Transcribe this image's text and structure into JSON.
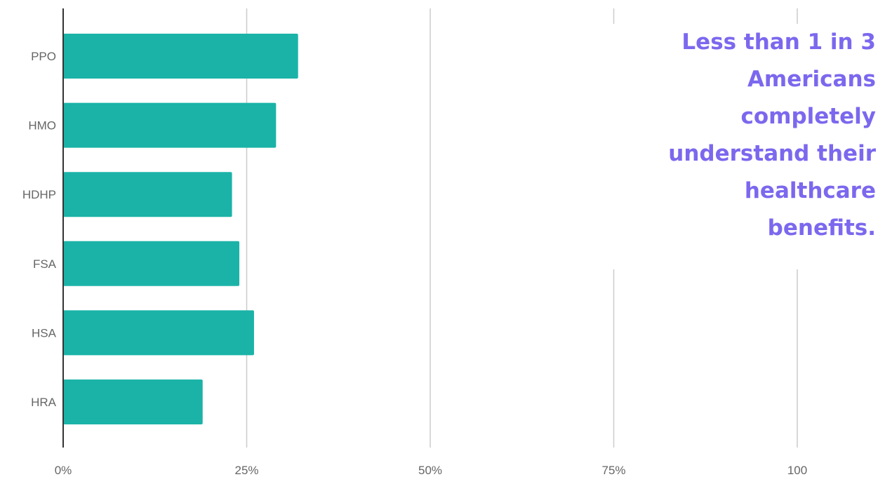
{
  "colors": {
    "bar": "#1bb3a7",
    "grid": "#cccccc",
    "axis": "#333333",
    "label": "#666666",
    "callout": "#7b68ee"
  },
  "callout": {
    "lines": [
      "Less than 1 in 3",
      "Americans",
      "completely",
      "understand their",
      "healthcare",
      "benefits."
    ]
  },
  "chart_data": {
    "type": "bar",
    "orientation": "horizontal",
    "categories": [
      "PPO",
      "HMO",
      "HDHP",
      "FSA",
      "HSA",
      "HRA"
    ],
    "values": [
      32,
      29,
      23,
      24,
      26,
      19
    ],
    "x_ticks": [
      {
        "value": 0,
        "label": "0%"
      },
      {
        "value": 25,
        "label": "25%"
      },
      {
        "value": 50,
        "label": "50%"
      },
      {
        "value": 75,
        "label": "75%"
      },
      {
        "value": 100,
        "label": "100"
      }
    ],
    "xlim": [
      0,
      100
    ],
    "grid": true,
    "title": "",
    "xlabel": "",
    "ylabel": ""
  }
}
